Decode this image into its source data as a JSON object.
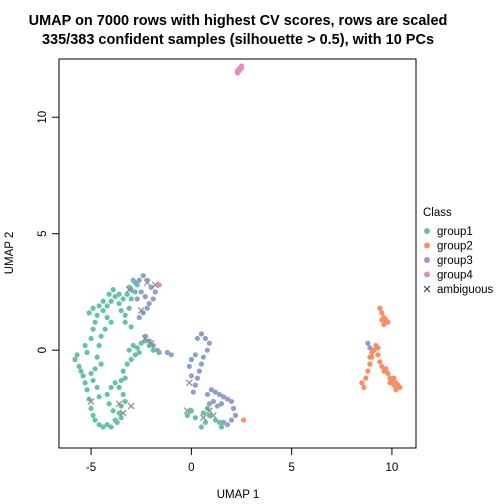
{
  "chart_data": {
    "type": "scatter",
    "title": "UMAP on 7000 rows with highest CV scores, rows are scaled",
    "subtitle": "335/383 confident samples (silhouette > 0.5), with 10 PCs",
    "xlabel": "UMAP 1",
    "ylabel": "UMAP 2",
    "xlim": [
      -6.6,
      11.2
    ],
    "ylim": [
      -4.2,
      12.5
    ],
    "xticks": [
      -5,
      0,
      5,
      10
    ],
    "yticks": [
      0,
      5,
      10
    ],
    "grid": false,
    "legend_position": "right",
    "legend_title": "Class",
    "series": [
      {
        "name": "group1",
        "color": "#66C2A5",
        "marker": "dot",
        "points": [
          [
            -5.8,
            -0.4
          ],
          [
            -5.7,
            -0.2
          ],
          [
            -5.6,
            -0.7
          ],
          [
            -5.5,
            -0.9
          ],
          [
            -5.4,
            -1.1
          ],
          [
            -5.3,
            -1.4
          ],
          [
            -5.2,
            -1.7
          ],
          [
            -5.1,
            -2.1
          ],
          [
            -5.0,
            -2.5
          ],
          [
            -4.9,
            -2.8
          ],
          [
            -4.8,
            -3.0
          ],
          [
            -4.6,
            -3.2
          ],
          [
            -4.4,
            -3.3
          ],
          [
            -4.2,
            -3.2
          ],
          [
            -4.0,
            -3.3
          ],
          [
            -3.8,
            -3.0
          ],
          [
            -3.6,
            -2.7
          ],
          [
            -3.5,
            -2.4
          ],
          [
            -3.3,
            -2.2
          ],
          [
            -3.4,
            -1.9
          ],
          [
            -3.6,
            -1.6
          ],
          [
            -3.8,
            -1.4
          ],
          [
            -4.0,
            -1.6
          ],
          [
            -4.2,
            -1.9
          ],
          [
            -4.1,
            -2.3
          ],
          [
            -3.9,
            -2.6
          ],
          [
            -3.7,
            -3.1
          ],
          [
            -3.5,
            -2.9
          ],
          [
            -5.2,
            -0.1
          ],
          [
            -5.3,
            0.2
          ],
          [
            -5.0,
            0.5
          ],
          [
            -4.9,
            0.9
          ],
          [
            -4.8,
            1.2
          ],
          [
            -4.7,
            1.5
          ],
          [
            -4.9,
            1.8
          ],
          [
            -5.1,
            1.6
          ],
          [
            -4.6,
            1.9
          ],
          [
            -4.4,
            1.7
          ],
          [
            -4.2,
            1.4
          ],
          [
            -4.0,
            1.2
          ],
          [
            -4.3,
            0.9
          ],
          [
            -4.5,
            0.6
          ],
          [
            -4.6,
            0.2
          ],
          [
            -4.7,
            -0.3
          ],
          [
            -4.5,
            -0.6
          ],
          [
            -4.8,
            -0.8
          ],
          [
            -5.0,
            -1.0
          ],
          [
            -4.9,
            -1.3
          ],
          [
            -4.7,
            -1.6
          ],
          [
            -4.6,
            -2.0
          ],
          [
            -4.2,
            1.9
          ],
          [
            -4.0,
            2.1
          ],
          [
            -3.8,
            2.3
          ],
          [
            -3.6,
            2.0
          ],
          [
            -3.5,
            1.7
          ],
          [
            -3.3,
            1.5
          ],
          [
            -3.1,
            1.8
          ],
          [
            -3.0,
            2.2
          ],
          [
            -2.8,
            2.5
          ],
          [
            -2.7,
            2.8
          ],
          [
            -2.9,
            3.0
          ],
          [
            -3.1,
            2.7
          ],
          [
            -3.2,
            2.4
          ],
          [
            -3.4,
            2.2
          ],
          [
            -3.6,
            2.4
          ],
          [
            -3.9,
            2.6
          ],
          [
            -4.1,
            2.4
          ],
          [
            -4.4,
            2.1
          ],
          [
            -3.3,
            1.2
          ],
          [
            -3.0,
            1.0
          ],
          [
            -3.1,
            0.0
          ],
          [
            -2.9,
            0.2
          ],
          [
            -2.7,
            0.1
          ],
          [
            -2.5,
            0.3
          ],
          [
            -2.3,
            0.4
          ],
          [
            -2.1,
            0.2
          ],
          [
            -1.9,
            0.0
          ],
          [
            -1.6,
            -0.1
          ],
          [
            -2.8,
            -0.2
          ],
          [
            -3.0,
            -0.4
          ],
          [
            -3.2,
            -0.6
          ],
          [
            -3.4,
            -0.9
          ],
          [
            -3.3,
            -1.2
          ],
          [
            -3.5,
            -1.3
          ],
          [
            -2.6,
            -0.1
          ],
          [
            -0.2,
            -2.8
          ],
          [
            0.0,
            -2.6
          ],
          [
            0.2,
            -2.9
          ],
          [
            0.6,
            -2.7
          ],
          [
            0.8,
            -2.5
          ],
          [
            0.9,
            -2.8
          ],
          [
            0.7,
            -3.1
          ],
          [
            0.5,
            -3.3
          ],
          [
            1.2,
            -3.0
          ],
          [
            1.4,
            -3.1
          ],
          [
            1.5,
            -3.3
          ]
        ]
      },
      {
        "name": "group2",
        "color": "#FC8D62",
        "marker": "dot",
        "points": [
          [
            8.5,
            -1.4
          ],
          [
            8.6,
            -1.6
          ],
          [
            8.7,
            -1.2
          ],
          [
            8.8,
            -0.9
          ],
          [
            8.9,
            -0.6
          ],
          [
            9.0,
            -0.3
          ],
          [
            9.1,
            0.0
          ],
          [
            9.2,
            0.2
          ],
          [
            9.3,
            -0.2
          ],
          [
            9.4,
            -0.5
          ],
          [
            9.5,
            -0.7
          ],
          [
            9.6,
            -0.9
          ],
          [
            9.7,
            -0.8
          ],
          [
            9.8,
            -1.0
          ],
          [
            9.9,
            -1.2
          ],
          [
            10.0,
            -1.3
          ],
          [
            10.1,
            -1.2
          ],
          [
            10.2,
            -1.4
          ],
          [
            10.3,
            -1.5
          ],
          [
            10.4,
            -1.6
          ],
          [
            10.2,
            -1.7
          ],
          [
            10.1,
            -1.5
          ],
          [
            9.9,
            -1.4
          ],
          [
            9.4,
            1.8
          ],
          [
            9.5,
            1.6
          ],
          [
            9.6,
            1.4
          ],
          [
            9.7,
            1.3
          ],
          [
            9.8,
            1.2
          ],
          [
            9.6,
            1.1
          ],
          [
            9.5,
            1.3
          ],
          [
            9.3,
            0.1
          ],
          [
            9.0,
            -0.1
          ],
          [
            8.9,
            -0.3
          ],
          [
            2.6,
            -3.0
          ]
        ]
      },
      {
        "name": "group3",
        "color": "#8DA0CB",
        "marker": "dot",
        "points": [
          [
            -3.0,
            2.6
          ],
          [
            -2.8,
            2.9
          ],
          [
            -2.6,
            3.0
          ],
          [
            -2.4,
            3.2
          ],
          [
            -2.2,
            3.0
          ],
          [
            -2.0,
            2.7
          ],
          [
            -1.8,
            2.5
          ],
          [
            -1.9,
            2.2
          ],
          [
            -2.1,
            2.0
          ],
          [
            -2.3,
            2.3
          ],
          [
            -2.5,
            2.5
          ],
          [
            -2.7,
            2.2
          ],
          [
            -2.2,
            1.8
          ],
          [
            -2.4,
            1.6
          ],
          [
            -2.6,
            1.4
          ],
          [
            -2.3,
            0.6
          ],
          [
            -2.1,
            0.4
          ],
          [
            -1.9,
            0.2
          ],
          [
            -1.7,
            0.0
          ],
          [
            -1.2,
            -0.1
          ],
          [
            -1.0,
            -0.2
          ],
          [
            0.3,
            0.5
          ],
          [
            0.5,
            0.7
          ],
          [
            0.7,
            0.5
          ],
          [
            0.9,
            0.3
          ],
          [
            0.8,
            0.0
          ],
          [
            0.6,
            -0.3
          ],
          [
            0.5,
            -0.6
          ],
          [
            0.4,
            -0.9
          ],
          [
            0.3,
            -1.2
          ],
          [
            0.2,
            -1.5
          ],
          [
            0.0,
            -1.1
          ],
          [
            -0.1,
            -0.7
          ],
          [
            0.0,
            -0.4
          ],
          [
            0.2,
            -0.2
          ],
          [
            0.1,
            -1.8
          ],
          [
            0.8,
            -1.9
          ],
          [
            1.0,
            -1.7
          ],
          [
            1.2,
            -1.8
          ],
          [
            1.4,
            -1.9
          ],
          [
            1.6,
            -2.0
          ],
          [
            1.8,
            -2.1
          ],
          [
            2.0,
            -2.2
          ],
          [
            2.1,
            -2.5
          ],
          [
            2.2,
            -2.8
          ],
          [
            2.0,
            -3.0
          ],
          [
            1.8,
            -3.2
          ],
          [
            1.6,
            -3.1
          ],
          [
            1.3,
            -2.4
          ],
          [
            1.1,
            -2.2
          ],
          [
            0.9,
            -2.3
          ],
          [
            1.5,
            -2.3
          ],
          [
            8.8,
            0.3
          ],
          [
            8.9,
            0.1
          ]
        ]
      },
      {
        "name": "group4",
        "color": "#E78AC3",
        "marker": "dot",
        "points": [
          [
            2.3,
            12.0
          ],
          [
            2.4,
            12.1
          ],
          [
            2.5,
            12.2
          ],
          [
            2.4,
            12.0
          ],
          [
            2.3,
            11.9
          ],
          [
            2.5,
            12.1
          ],
          [
            -1.6,
            2.8
          ]
        ]
      },
      {
        "name": "ambiguous",
        "color": "#8C8C8C",
        "marker": "x",
        "points": [
          [
            -3.1,
            2.6
          ],
          [
            -2.2,
            2.9
          ],
          [
            -1.8,
            2.8
          ],
          [
            -2.5,
            1.7
          ],
          [
            -2.3,
            0.5
          ],
          [
            -2.0,
            0.3
          ],
          [
            -3.6,
            -2.3
          ],
          [
            -3.0,
            -2.4
          ],
          [
            -3.4,
            -2.7
          ],
          [
            -5.0,
            -2.2
          ],
          [
            -0.1,
            -1.4
          ],
          [
            0.6,
            -2.9
          ],
          [
            0.9,
            -2.6
          ],
          [
            -0.2,
            -2.6
          ],
          [
            1.1,
            -2.8
          ]
        ]
      }
    ]
  }
}
